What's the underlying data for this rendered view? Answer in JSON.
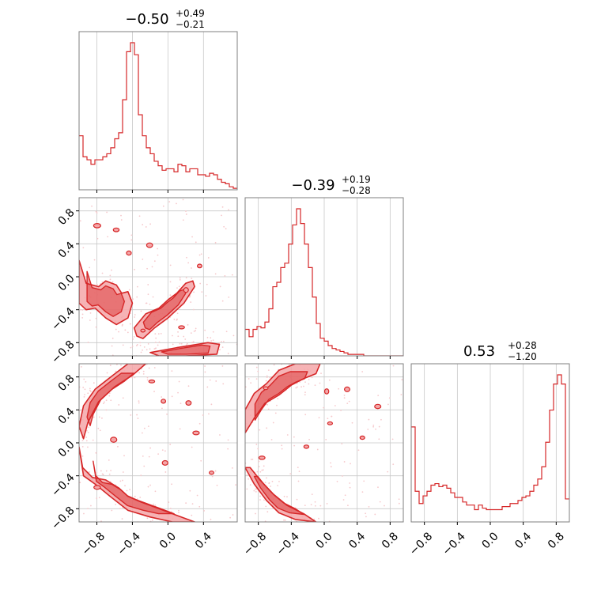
{
  "chart_data": {
    "type": "corner",
    "parameters": 3,
    "colors": {
      "line": "#d62728",
      "fill": "#f4a6a8",
      "scatter": "#f6c9cc",
      "grid": "#c8c8c8",
      "axes": "#7f7f7f"
    },
    "tick_labels": [
      "−0.8",
      "−0.4",
      "0.0",
      "0.4",
      "0.8"
    ],
    "tick_values": [
      -0.8,
      -0.4,
      0.0,
      0.4,
      0.8
    ],
    "axis_ranges": {
      "p1": [
        -1.0,
        0.78
      ],
      "p2": [
        -0.96,
        0.96
      ],
      "p3": [
        -0.96,
        0.96
      ]
    },
    "grid": true,
    "titles": [
      {
        "value": "−0.50",
        "upper": "+0.49",
        "lower": "−0.21"
      },
      {
        "value": "−0.39",
        "upper": "+0.19",
        "lower": "−0.28"
      },
      {
        "value": "0.53",
        "upper": "+0.28",
        "lower": "−1.20"
      }
    ],
    "histograms": [
      {
        "name": "p1",
        "bin_edges_start": -1.0,
        "bin_width": 0.0445,
        "counts": [
          0.36,
          0.22,
          0.2,
          0.17,
          0.2,
          0.2,
          0.22,
          0.24,
          0.28,
          0.34,
          0.38,
          0.6,
          0.92,
          0.98,
          0.9,
          0.5,
          0.36,
          0.28,
          0.24,
          0.19,
          0.16,
          0.13,
          0.14,
          0.14,
          0.12,
          0.17,
          0.16,
          0.12,
          0.14,
          0.14,
          0.1,
          0.1,
          0.09,
          0.11,
          0.1,
          0.07,
          0.05,
          0.04,
          0.02,
          0.01
        ]
      },
      {
        "name": "p2",
        "bin_edges_start": -0.96,
        "bin_width": 0.048,
        "counts": [
          0.18,
          0.13,
          0.18,
          0.2,
          0.19,
          0.23,
          0.32,
          0.47,
          0.5,
          0.6,
          0.63,
          0.76,
          0.89,
          1.0,
          0.9,
          0.76,
          0.6,
          0.4,
          0.22,
          0.12,
          0.1,
          0.07,
          0.05,
          0.04,
          0.03,
          0.02,
          0.01,
          0.01,
          0.01,
          0.01,
          0.0,
          0.0,
          0.0,
          0.0,
          0.0,
          0.0,
          0.0,
          0.0,
          0.0,
          0.0
        ]
      },
      {
        "name": "p3",
        "bin_edges_start": -0.96,
        "bin_width": 0.048,
        "counts": [
          0.62,
          0.2,
          0.12,
          0.17,
          0.2,
          0.24,
          0.25,
          0.23,
          0.24,
          0.22,
          0.19,
          0.16,
          0.16,
          0.13,
          0.11,
          0.11,
          0.08,
          0.11,
          0.09,
          0.08,
          0.08,
          0.08,
          0.08,
          0.1,
          0.1,
          0.12,
          0.12,
          0.14,
          0.16,
          0.17,
          0.2,
          0.24,
          0.28,
          0.36,
          0.52,
          0.73,
          0.9,
          0.96,
          0.9,
          0.15
        ]
      }
    ],
    "scatter_panels": [
      {
        "x_param": "p1",
        "y_param": "p2"
      },
      {
        "x_param": "p1",
        "y_param": "p3"
      },
      {
        "x_param": "p2",
        "y_param": "p3"
      }
    ],
    "contour_regions": {
      "p1_p2": [
        [
          [
            -1.0,
            0.2
          ],
          [
            -0.92,
            -0.08
          ],
          [
            -0.78,
            -0.12
          ],
          [
            -0.7,
            -0.05
          ],
          [
            -0.58,
            -0.1
          ],
          [
            -0.52,
            -0.2
          ],
          [
            -0.45,
            -0.18
          ],
          [
            -0.4,
            -0.32
          ],
          [
            -0.45,
            -0.5
          ],
          [
            -0.58,
            -0.58
          ],
          [
            -0.7,
            -0.5
          ],
          [
            -0.82,
            -0.38
          ],
          [
            -0.92,
            -0.4
          ],
          [
            -1.0,
            -0.32
          ]
        ],
        [
          [
            -0.38,
            -0.62
          ],
          [
            -0.25,
            -0.45
          ],
          [
            -0.1,
            -0.38
          ],
          [
            0.0,
            -0.28
          ],
          [
            0.1,
            -0.2
          ],
          [
            0.2,
            -0.08
          ],
          [
            0.28,
            -0.05
          ],
          [
            0.3,
            -0.12
          ],
          [
            0.18,
            -0.32
          ],
          [
            0.0,
            -0.5
          ],
          [
            -0.15,
            -0.62
          ],
          [
            -0.28,
            -0.75
          ],
          [
            -0.35,
            -0.72
          ]
        ],
        [
          [
            -0.2,
            -0.92
          ],
          [
            0.1,
            -0.86
          ],
          [
            0.45,
            -0.8
          ],
          [
            0.58,
            -0.82
          ],
          [
            0.55,
            -0.94
          ],
          [
            0.2,
            -0.96
          ],
          [
            -0.1,
            -0.96
          ]
        ]
      ],
      "p1_p3": [
        [
          [
            -1.0,
            0.2
          ],
          [
            -0.95,
            0.45
          ],
          [
            -0.82,
            0.65
          ],
          [
            -0.62,
            0.82
          ],
          [
            -0.45,
            0.96
          ],
          [
            -0.25,
            0.96
          ],
          [
            -0.4,
            0.82
          ],
          [
            -0.6,
            0.68
          ],
          [
            -0.78,
            0.5
          ],
          [
            -0.9,
            0.25
          ],
          [
            -0.95,
            0.05
          ]
        ],
        [
          [
            -1.0,
            -0.05
          ],
          [
            -0.96,
            -0.3
          ],
          [
            -0.85,
            -0.42
          ],
          [
            -0.7,
            -0.45
          ],
          [
            -0.55,
            -0.55
          ],
          [
            -0.45,
            -0.65
          ],
          [
            -0.3,
            -0.72
          ],
          [
            -0.1,
            -0.8
          ],
          [
            0.1,
            -0.88
          ],
          [
            0.3,
            -0.96
          ],
          [
            0.05,
            -0.96
          ],
          [
            -0.2,
            -0.9
          ],
          [
            -0.45,
            -0.82
          ],
          [
            -0.65,
            -0.65
          ],
          [
            -0.82,
            -0.5
          ],
          [
            -0.95,
            -0.4
          ]
        ]
      ],
      "p2_p3": [
        [
          [
            -0.96,
            0.4
          ],
          [
            -0.85,
            0.6
          ],
          [
            -0.7,
            0.72
          ],
          [
            -0.55,
            0.88
          ],
          [
            -0.35,
            0.96
          ],
          [
            -0.05,
            0.96
          ],
          [
            -0.1,
            0.84
          ],
          [
            -0.25,
            0.78
          ],
          [
            -0.4,
            0.7
          ],
          [
            -0.55,
            0.58
          ],
          [
            -0.72,
            0.48
          ],
          [
            -0.85,
            0.3
          ],
          [
            -0.96,
            0.12
          ]
        ],
        [
          [
            -0.96,
            -0.3
          ],
          [
            -0.85,
            -0.5
          ],
          [
            -0.7,
            -0.7
          ],
          [
            -0.55,
            -0.85
          ],
          [
            -0.35,
            -0.93
          ],
          [
            -0.1,
            -0.96
          ],
          [
            -0.25,
            -0.86
          ],
          [
            -0.45,
            -0.76
          ],
          [
            -0.62,
            -0.62
          ],
          [
            -0.78,
            -0.45
          ],
          [
            -0.9,
            -0.3
          ]
        ]
      ]
    }
  }
}
